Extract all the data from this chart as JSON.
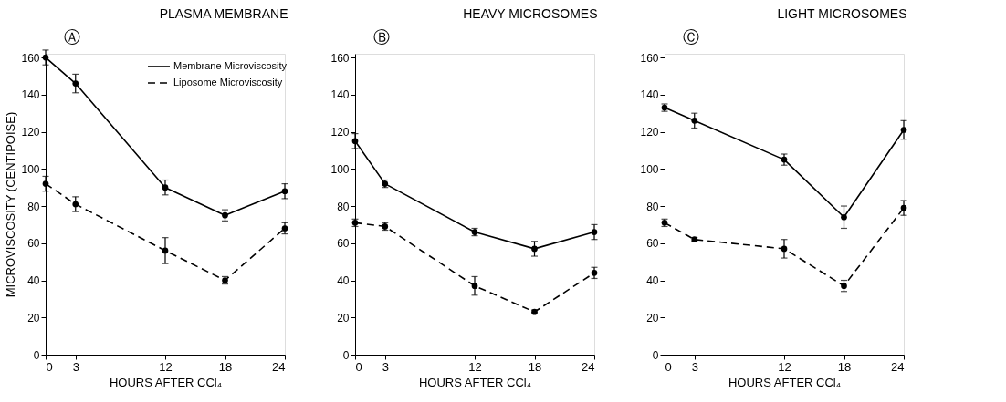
{
  "chart_data": [
    {
      "type": "line",
      "title": "PLASMA MEMBRANE",
      "annotations": [
        "Ⓐ"
      ],
      "xlabel": "HOURS AFTER CCl₄",
      "ylabel": "MICROVISCOSITY (CENTIPOISE)",
      "x": [
        0,
        3,
        12,
        18,
        24
      ],
      "xlim": [
        0,
        24
      ],
      "xticks": [
        0,
        3,
        12,
        18,
        24
      ],
      "ylim": [
        0,
        162
      ],
      "yticks": [
        0,
        20,
        40,
        60,
        80,
        100,
        120,
        140,
        160
      ],
      "grid": false,
      "marker": "circle",
      "legend": "top right",
      "series": [
        {
          "name": "Membrane Microviscosity",
          "color": "#000000",
          "line_style": "solid",
          "values": [
            160,
            146,
            90,
            75,
            88
          ],
          "errors": [
            4,
            5,
            4,
            3,
            4
          ]
        },
        {
          "name": "Liposome Microviscosity",
          "color": "#000000",
          "line_style": "dashed",
          "values": [
            92,
            81,
            56,
            40,
            68
          ],
          "errors": [
            4,
            4,
            7,
            2,
            3
          ]
        }
      ]
    },
    {
      "type": "line",
      "title": "HEAVY MICROSOMES",
      "annotations": [
        "Ⓑ"
      ],
      "xlabel": "HOURS AFTER CCl₄",
      "x": [
        0,
        3,
        12,
        18,
        24
      ],
      "xlim": [
        0,
        24
      ],
      "xticks": [
        0,
        3,
        12,
        18,
        24
      ],
      "ylim": [
        0,
        162
      ],
      "yticks": [
        0,
        20,
        40,
        60,
        80,
        100,
        120,
        140,
        160
      ],
      "grid": false,
      "marker": "circle",
      "series": [
        {
          "color": "#000000",
          "line_style": "solid",
          "values": [
            115,
            92,
            66,
            57,
            66
          ],
          "errors": [
            4,
            2,
            2,
            4,
            4
          ]
        },
        {
          "color": "#000000",
          "line_style": "dashed",
          "values": [
            71,
            69,
            37,
            23,
            44
          ],
          "errors": [
            2,
            2,
            5,
            1,
            3
          ]
        }
      ]
    },
    {
      "type": "line",
      "title": "LIGHT MICROSOMES",
      "annotations": [
        "Ⓒ"
      ],
      "xlabel": "HOURS AFTER CCl₄",
      "x": [
        0,
        3,
        12,
        18,
        24
      ],
      "xlim": [
        0,
        24
      ],
      "xticks": [
        0,
        3,
        12,
        18,
        24
      ],
      "ylim": [
        0,
        162
      ],
      "yticks": [
        0,
        20,
        40,
        60,
        80,
        100,
        120,
        140,
        160
      ],
      "grid": false,
      "marker": "circle",
      "series": [
        {
          "color": "#000000",
          "line_style": "solid",
          "values": [
            133,
            126,
            105,
            74,
            121
          ],
          "errors": [
            2,
            4,
            3,
            6,
            5
          ]
        },
        {
          "color": "#000000",
          "line_style": "dashed",
          "values": [
            71,
            62,
            57,
            37,
            79
          ],
          "errors": [
            2,
            1,
            5,
            3,
            4
          ]
        }
      ]
    }
  ]
}
